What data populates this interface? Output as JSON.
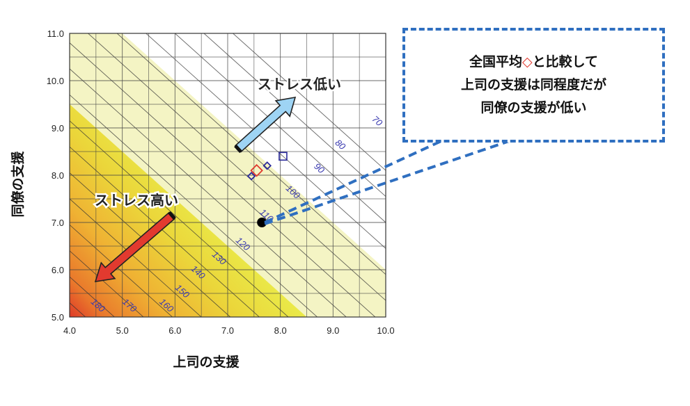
{
  "chart_data": {
    "type": "contour",
    "xlabel": "上司の支援",
    "ylabel": "同僚の支援",
    "xlim": [
      4.0,
      10.0
    ],
    "ylim": [
      5.0,
      11.0
    ],
    "x_ticks": [
      "4.0",
      "5.0",
      "6.0",
      "7.0",
      "8.0",
      "9.0",
      "10.0"
    ],
    "y_ticks": [
      "5.0",
      "6.0",
      "7.0",
      "8.0",
      "9.0",
      "10.0",
      "11.0"
    ],
    "grid": true,
    "contours": [
      {
        "label": "70",
        "x": 9.8,
        "y": 9.1
      },
      {
        "label": "80",
        "x": 9.1,
        "y": 8.6
      },
      {
        "label": "90",
        "x": 8.7,
        "y": 8.1
      },
      {
        "label": "100",
        "x": 8.2,
        "y": 7.6
      },
      {
        "label": "110",
        "x": 7.7,
        "y": 7.1
      },
      {
        "label": "120",
        "x": 7.25,
        "y": 6.5
      },
      {
        "label": "130",
        "x": 6.8,
        "y": 6.2
      },
      {
        "label": "140",
        "x": 6.4,
        "y": 5.9
      },
      {
        "label": "150",
        "x": 6.1,
        "y": 5.5
      },
      {
        "label": "160",
        "x": 5.8,
        "y": 5.2
      },
      {
        "label": "170",
        "x": 5.1,
        "y": 5.2
      },
      {
        "label": "180",
        "x": 4.5,
        "y": 5.2
      }
    ],
    "points": [
      {
        "name": "national-average",
        "shape": "diamond",
        "color": "#e03a2e",
        "x": 7.55,
        "y": 8.1
      },
      {
        "name": "blue-diamond-a",
        "shape": "diamond",
        "color": "#2a2a9a",
        "x": 7.75,
        "y": 8.2
      },
      {
        "name": "blue-diamond-b",
        "shape": "diamond",
        "color": "#2a2a9a",
        "x": 7.45,
        "y": 7.98
      },
      {
        "name": "blue-square",
        "shape": "square",
        "color": "#2a2a9a",
        "x": 8.05,
        "y": 8.4
      },
      {
        "name": "target",
        "shape": "circle",
        "color": "#000000",
        "x": 7.65,
        "y": 7.0
      }
    ],
    "annotations": {
      "low_stress": "ストレス低い",
      "high_stress": "ストレス高い"
    }
  },
  "callout": {
    "line1_before": "全国平均",
    "line1_mark": "◇",
    "line1_after": "と比較して",
    "line2": "上司の支援は同程度だが",
    "line3": "同僚の支援が低い"
  },
  "colors": {
    "band_white": "#ffffff",
    "band_light": "#f4f4c4",
    "band_yellow": "#e8e03a",
    "band_orange": "#eda12e",
    "band_red": "#d9342a",
    "arrow_low": "#9ed4f4",
    "arrow_high": "#e23a2f",
    "callout_border": "#2f6fc0"
  }
}
